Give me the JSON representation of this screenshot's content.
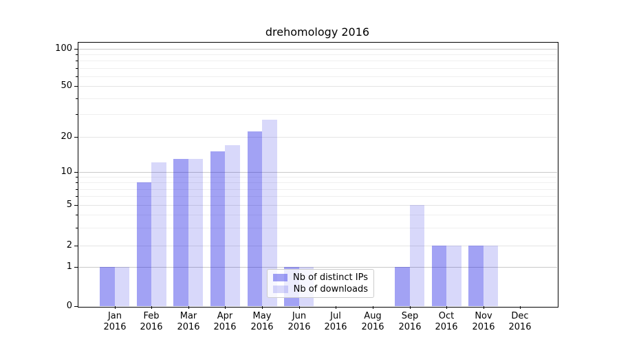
{
  "chart_data": {
    "type": "bar",
    "title": "drehomology 2016",
    "categories": [
      "Jan",
      "Feb",
      "Mar",
      "Apr",
      "May",
      "Jun",
      "Jul",
      "Aug",
      "Sep",
      "Oct",
      "Nov",
      "Dec"
    ],
    "category_year_line": "2016",
    "series": [
      {
        "name": "Nb of distinct IPs",
        "color": "rgba(10,10,225,0.38)",
        "values": [
          1,
          8,
          13,
          15,
          22,
          1,
          0,
          0,
          1,
          2,
          2,
          0
        ]
      },
      {
        "name": "Nb of downloads",
        "color": "rgba(10,10,225,0.16)",
        "values": [
          1,
          12,
          13,
          17,
          27,
          1,
          0,
          0,
          5,
          2,
          2,
          0
        ]
      }
    ],
    "y_axis": {
      "scale": "log-like (symlog, linear 0-1)",
      "tick_labels": [
        "0",
        "1",
        "2",
        "5",
        "10",
        "20",
        "50",
        "100"
      ],
      "tick_values": [
        0,
        1,
        2,
        5,
        10,
        20,
        50,
        100
      ],
      "major_tick_values": [
        1,
        10,
        100
      ],
      "minor_tick_values": [
        3,
        4,
        6,
        7,
        8,
        9,
        30,
        40,
        60,
        70,
        80,
        90
      ],
      "ylim": [
        0,
        114
      ],
      "grid": true
    },
    "legend": {
      "position": "lower center",
      "entries_from": "series names"
    }
  }
}
